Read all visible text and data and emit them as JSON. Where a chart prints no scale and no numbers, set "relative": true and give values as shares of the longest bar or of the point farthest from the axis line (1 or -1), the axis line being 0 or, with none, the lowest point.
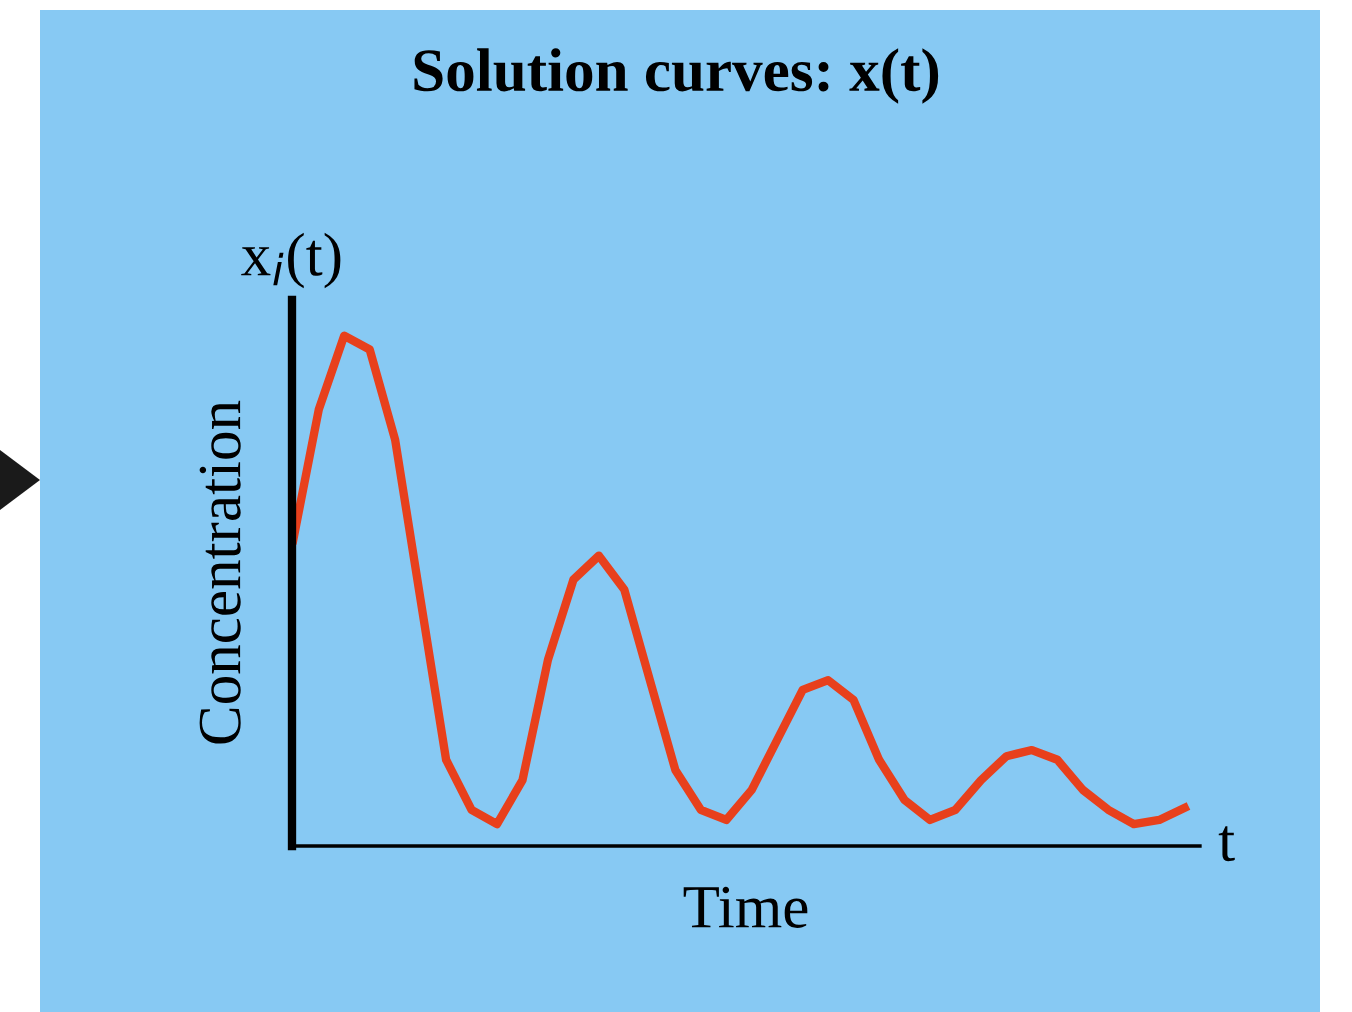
{
  "chart_data": {
    "type": "line",
    "title": "Solution curves: x(t)",
    "xlabel": "Time",
    "ylabel": "Concentration",
    "annotations": [
      "x$_{i}$(t)",
      "t"
    ],
    "relative": true,
    "legend": false,
    "marker": "none",
    "line_style": "solid",
    "categories": [
      null,
      null,
      null,
      null,
      null,
      null,
      null,
      null,
      null,
      null,
      null,
      null,
      null,
      null,
      null,
      null,
      null,
      null,
      null,
      null,
      null,
      null,
      null,
      null,
      null,
      null,
      null,
      null,
      null,
      null,
      null,
      null,
      null,
      null,
      null,
      null
    ],
    "series": [
      {
        "color": "#e8401c",
        "values": [
          0.6,
          0.855,
          1.0,
          0.973,
          0.796,
          0.482,
          0.169,
          0.071,
          0.043,
          0.129,
          0.365,
          0.522,
          0.569,
          0.502,
          0.325,
          0.149,
          0.071,
          0.051,
          0.11,
          0.208,
          0.306,
          0.325,
          0.286,
          0.169,
          0.09,
          0.051,
          0.071,
          0.129,
          0.176,
          0.188,
          0.169,
          0.11,
          0.071,
          0.043,
          0.051,
          0.075
        ]
      }
    ]
  }
}
